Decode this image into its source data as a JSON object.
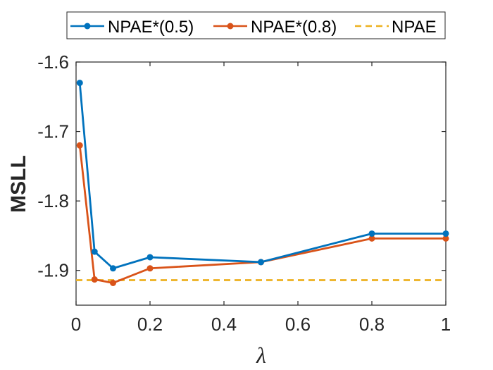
{
  "chart_data": {
    "type": "line",
    "title": "",
    "xlabel": "λ",
    "ylabel": "MSLL",
    "xlim": [
      0,
      1
    ],
    "ylim": [
      -1.95,
      -1.6
    ],
    "xticks": [
      0,
      0.2,
      0.4,
      0.6,
      0.8,
      1
    ],
    "xtick_labels": [
      "0",
      "0.2",
      "0.4",
      "0.6",
      "0.8",
      "1"
    ],
    "yticks": [
      -1.6,
      -1.7,
      -1.8,
      -1.9
    ],
    "ytick_labels": [
      "-1.6",
      "-1.7",
      "-1.8",
      "-1.9"
    ],
    "grid": false,
    "legend_position": "top",
    "series": [
      {
        "name": "NPAE*(0.5)",
        "color": "#0072BD",
        "style": "solid-marker",
        "x": [
          0.01,
          0.05,
          0.1,
          0.2,
          0.5,
          0.8,
          1.0
        ],
        "y": [
          -1.63,
          -1.873,
          -1.897,
          -1.881,
          -1.888,
          -1.847,
          -1.847
        ]
      },
      {
        "name": "NPAE*(0.8)",
        "color": "#D95319",
        "style": "solid-marker",
        "x": [
          0.01,
          0.05,
          0.1,
          0.2,
          0.5,
          0.8,
          1.0
        ],
        "y": [
          -1.72,
          -1.913,
          -1.918,
          -1.897,
          -1.888,
          -1.854,
          -1.854
        ]
      },
      {
        "name": "NPAE",
        "color": "#EDB120",
        "style": "dashed",
        "x": [
          0,
          1
        ],
        "y": [
          -1.914,
          -1.914
        ]
      }
    ]
  }
}
